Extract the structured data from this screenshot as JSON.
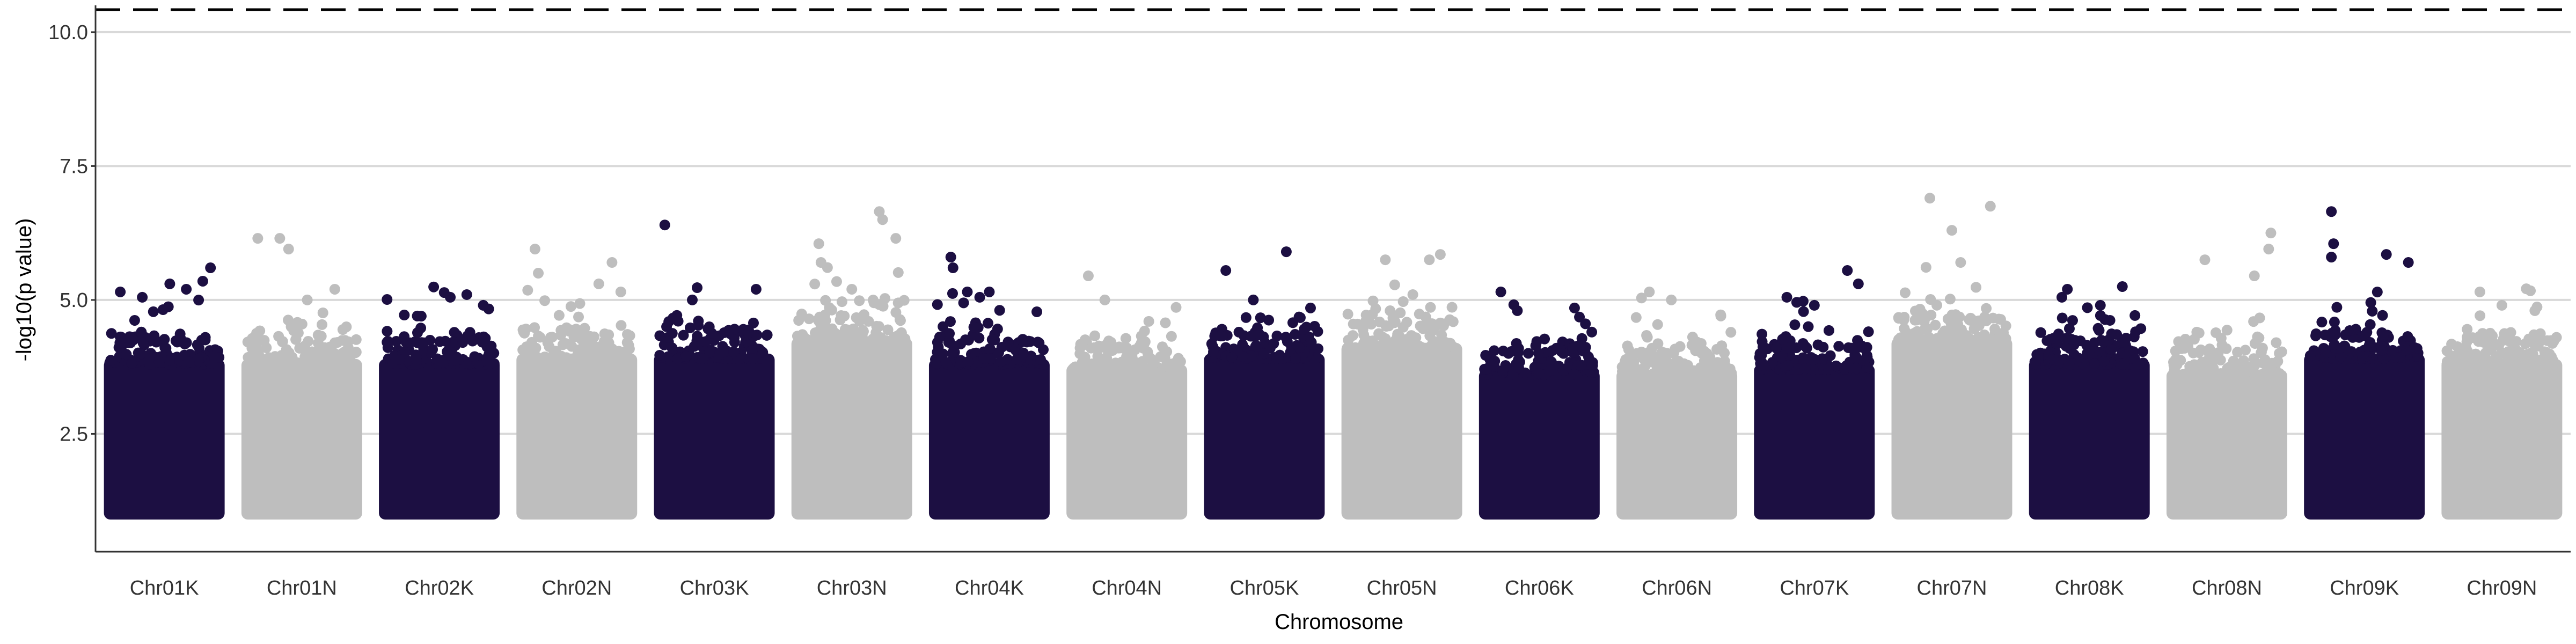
{
  "chart_data": {
    "type": "scatter",
    "subtype": "manhattan",
    "title": "",
    "xlabel": "Chromosome",
    "ylabel": "-log10(p value)",
    "ylim": [
      0.3,
      10.5
    ],
    "yticks": [
      2.5,
      5.0,
      7.5,
      10.0
    ],
    "ytick_labels": [
      "2.5",
      "5.0",
      "7.5",
      "10.0"
    ],
    "grid": "horizontal major lines",
    "legend": "none",
    "point_baseline": 1.0,
    "threshold": {
      "value": 10.42,
      "style": "dashed",
      "color": "#000000"
    },
    "colors": {
      "dark": "#1c0f42",
      "light": "#bebebe",
      "grid": "#d9d9d9",
      "axis": "#333333"
    },
    "categories": [
      "Chr01K",
      "Chr01N",
      "Chr02K",
      "Chr02N",
      "Chr03K",
      "Chr03N",
      "Chr04K",
      "Chr04N",
      "Chr05K",
      "Chr05N",
      "Chr06K",
      "Chr06N",
      "Chr07K",
      "Chr07N",
      "Chr08K",
      "Chr08N",
      "Chr09K",
      "Chr09N"
    ],
    "series": [
      {
        "color": "dark",
        "dense_top": 3.9,
        "peak_points": [
          [
            0.1,
            5.15
          ],
          [
            0.3,
            5.05
          ],
          [
            0.55,
            5.3
          ],
          [
            0.7,
            5.2
          ],
          [
            0.85,
            5.35
          ],
          [
            0.92,
            5.6
          ]
        ]
      },
      {
        "color": "light",
        "dense_top": 3.9,
        "peak_points": [
          [
            0.1,
            6.15
          ],
          [
            0.3,
            6.15
          ],
          [
            0.38,
            5.95
          ],
          [
            0.55,
            5.0
          ],
          [
            0.8,
            5.2
          ]
        ]
      },
      {
        "color": "dark",
        "dense_top": 3.9,
        "peak_points": [
          [
            0.3,
            4.7
          ],
          [
            0.6,
            5.05
          ],
          [
            0.75,
            5.1
          ],
          [
            0.9,
            4.9
          ]
        ]
      },
      {
        "color": "light",
        "dense_top": 4.0,
        "peak_points": [
          [
            0.12,
            5.95
          ],
          [
            0.15,
            5.5
          ],
          [
            0.7,
            5.3
          ],
          [
            0.82,
            5.7
          ],
          [
            0.9,
            5.15
          ]
        ]
      },
      {
        "color": "dark",
        "dense_top": 4.0,
        "peak_points": [
          [
            0.05,
            6.4
          ],
          [
            0.3,
            5.0
          ],
          [
            0.88,
            5.2
          ]
        ]
      },
      {
        "color": "light",
        "dense_top": 4.3,
        "peak_points": [
          [
            0.2,
            6.05
          ],
          [
            0.22,
            5.7
          ],
          [
            0.75,
            6.65
          ],
          [
            0.78,
            6.5
          ],
          [
            0.9,
            6.15
          ],
          [
            0.5,
            5.2
          ]
        ]
      },
      {
        "color": "dark",
        "dense_top": 3.9,
        "peak_points": [
          [
            0.15,
            5.8
          ],
          [
            0.17,
            5.6
          ],
          [
            0.3,
            5.15
          ],
          [
            0.5,
            5.15
          ]
        ]
      },
      {
        "color": "light",
        "dense_top": 3.8,
        "peak_points": [
          [
            0.15,
            5.45
          ],
          [
            0.3,
            5.0
          ],
          [
            0.7,
            4.6
          ]
        ]
      },
      {
        "color": "dark",
        "dense_top": 4.0,
        "peak_points": [
          [
            0.15,
            5.55
          ],
          [
            0.4,
            5.0
          ],
          [
            0.7,
            5.9
          ],
          [
            0.92,
            4.85
          ]
        ]
      },
      {
        "color": "light",
        "dense_top": 4.2,
        "peak_points": [
          [
            0.35,
            5.75
          ],
          [
            0.75,
            5.75
          ],
          [
            0.85,
            5.85
          ],
          [
            0.6,
            5.1
          ]
        ]
      },
      {
        "color": "dark",
        "dense_top": 3.7,
        "peak_points": [
          [
            0.15,
            5.15
          ],
          [
            0.3,
            4.8
          ],
          [
            0.82,
            4.85
          ]
        ]
      },
      {
        "color": "light",
        "dense_top": 3.7,
        "peak_points": [
          [
            0.25,
            5.15
          ],
          [
            0.45,
            5.0
          ],
          [
            0.9,
            4.7
          ]
        ]
      },
      {
        "color": "dark",
        "dense_top": 3.8,
        "peak_points": [
          [
            0.25,
            5.05
          ],
          [
            0.5,
            4.9
          ],
          [
            0.8,
            5.55
          ],
          [
            0.9,
            5.3
          ]
        ]
      },
      {
        "color": "light",
        "dense_top": 4.3,
        "peak_points": [
          [
            0.3,
            6.9
          ],
          [
            0.5,
            6.3
          ],
          [
            0.58,
            5.7
          ],
          [
            0.85,
            6.75
          ]
        ]
      },
      {
        "color": "dark",
        "dense_top": 3.9,
        "peak_points": [
          [
            0.25,
            5.05
          ],
          [
            0.3,
            5.2
          ],
          [
            0.6,
            4.9
          ],
          [
            0.8,
            5.25
          ]
        ]
      },
      {
        "color": "light",
        "dense_top": 3.7,
        "peak_points": [
          [
            0.3,
            5.75
          ],
          [
            0.75,
            5.45
          ],
          [
            0.9,
            6.25
          ],
          [
            0.88,
            5.95
          ]
        ]
      },
      {
        "color": "dark",
        "dense_top": 4.0,
        "peak_points": [
          [
            0.2,
            6.65
          ],
          [
            0.22,
            6.05
          ],
          [
            0.2,
            5.8
          ],
          [
            0.7,
            5.85
          ],
          [
            0.9,
            5.7
          ]
        ]
      },
      {
        "color": "light",
        "dense_top": 3.9,
        "peak_points": [
          [
            0.3,
            5.15
          ],
          [
            0.5,
            4.9
          ],
          [
            0.8,
            4.8
          ]
        ]
      }
    ]
  }
}
